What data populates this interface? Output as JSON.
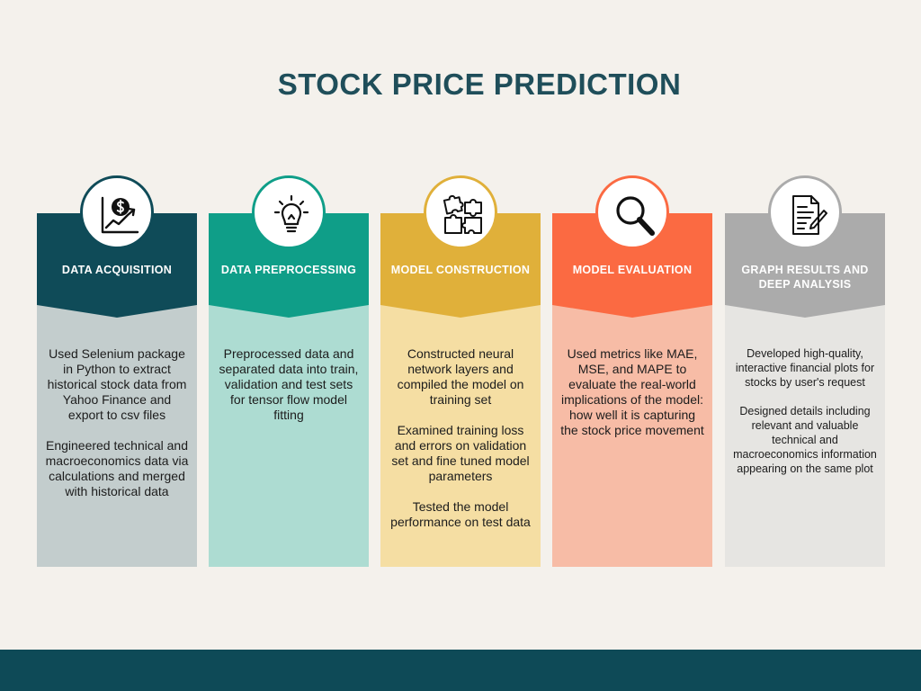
{
  "title": "STOCK PRICE PREDICTION",
  "colors": {
    "background": "#f4f1ec",
    "footer": "#0e4a57",
    "title": "#1f4e5a"
  },
  "steps": [
    {
      "heading": "DATA ACQUISITION",
      "icon": "money-growth-chart-icon",
      "header_color": "#0f4b58",
      "body_color": "#c3cdcd",
      "paragraphs": [
        "Used Selenium package in Python to extract historical stock data from Yahoo Finance and export to csv files",
        "Engineered  technical and macroeconomics data via calculations and merged with historical data"
      ]
    },
    {
      "heading": "DATA PREPROCESSING",
      "icon": "lightbulb-icon",
      "header_color": "#0f9e88",
      "body_color": "#addcd2",
      "paragraphs": [
        "Preprocessed data and separated data into train, validation and test  sets for tensor flow model fitting"
      ]
    },
    {
      "heading": "MODEL CONSTRUCTION",
      "icon": "puzzle-pieces-icon",
      "header_color": "#e0b03a",
      "body_color": "#f5dea3",
      "paragraphs": [
        "Constructed neural network layers and compiled the model on training set",
        "Examined training loss and errors on validation set and fine tuned model parameters",
        "Tested the model performance on test data"
      ]
    },
    {
      "heading": "MODEL EVALUATION",
      "icon": "magnifying-glass-icon",
      "header_color": "#fb6a42",
      "body_color": "#f7bca6",
      "paragraphs": [
        "Used metrics like MAE, MSE, and MAPE to evaluate the real-world implications of the model: how well it is capturing the stock price movement"
      ]
    },
    {
      "heading": "GRAPH RESULTS AND DEEP ANALYSIS",
      "icon": "document-pen-icon",
      "header_color": "#ababab",
      "body_color": "#e6e5e2",
      "paragraphs": [
        "Developed high-quality, interactive financial plots for stocks by user's request",
        "Designed details including relevant and valuable technical and macroeconomics information appearing on the same plot"
      ]
    }
  ]
}
